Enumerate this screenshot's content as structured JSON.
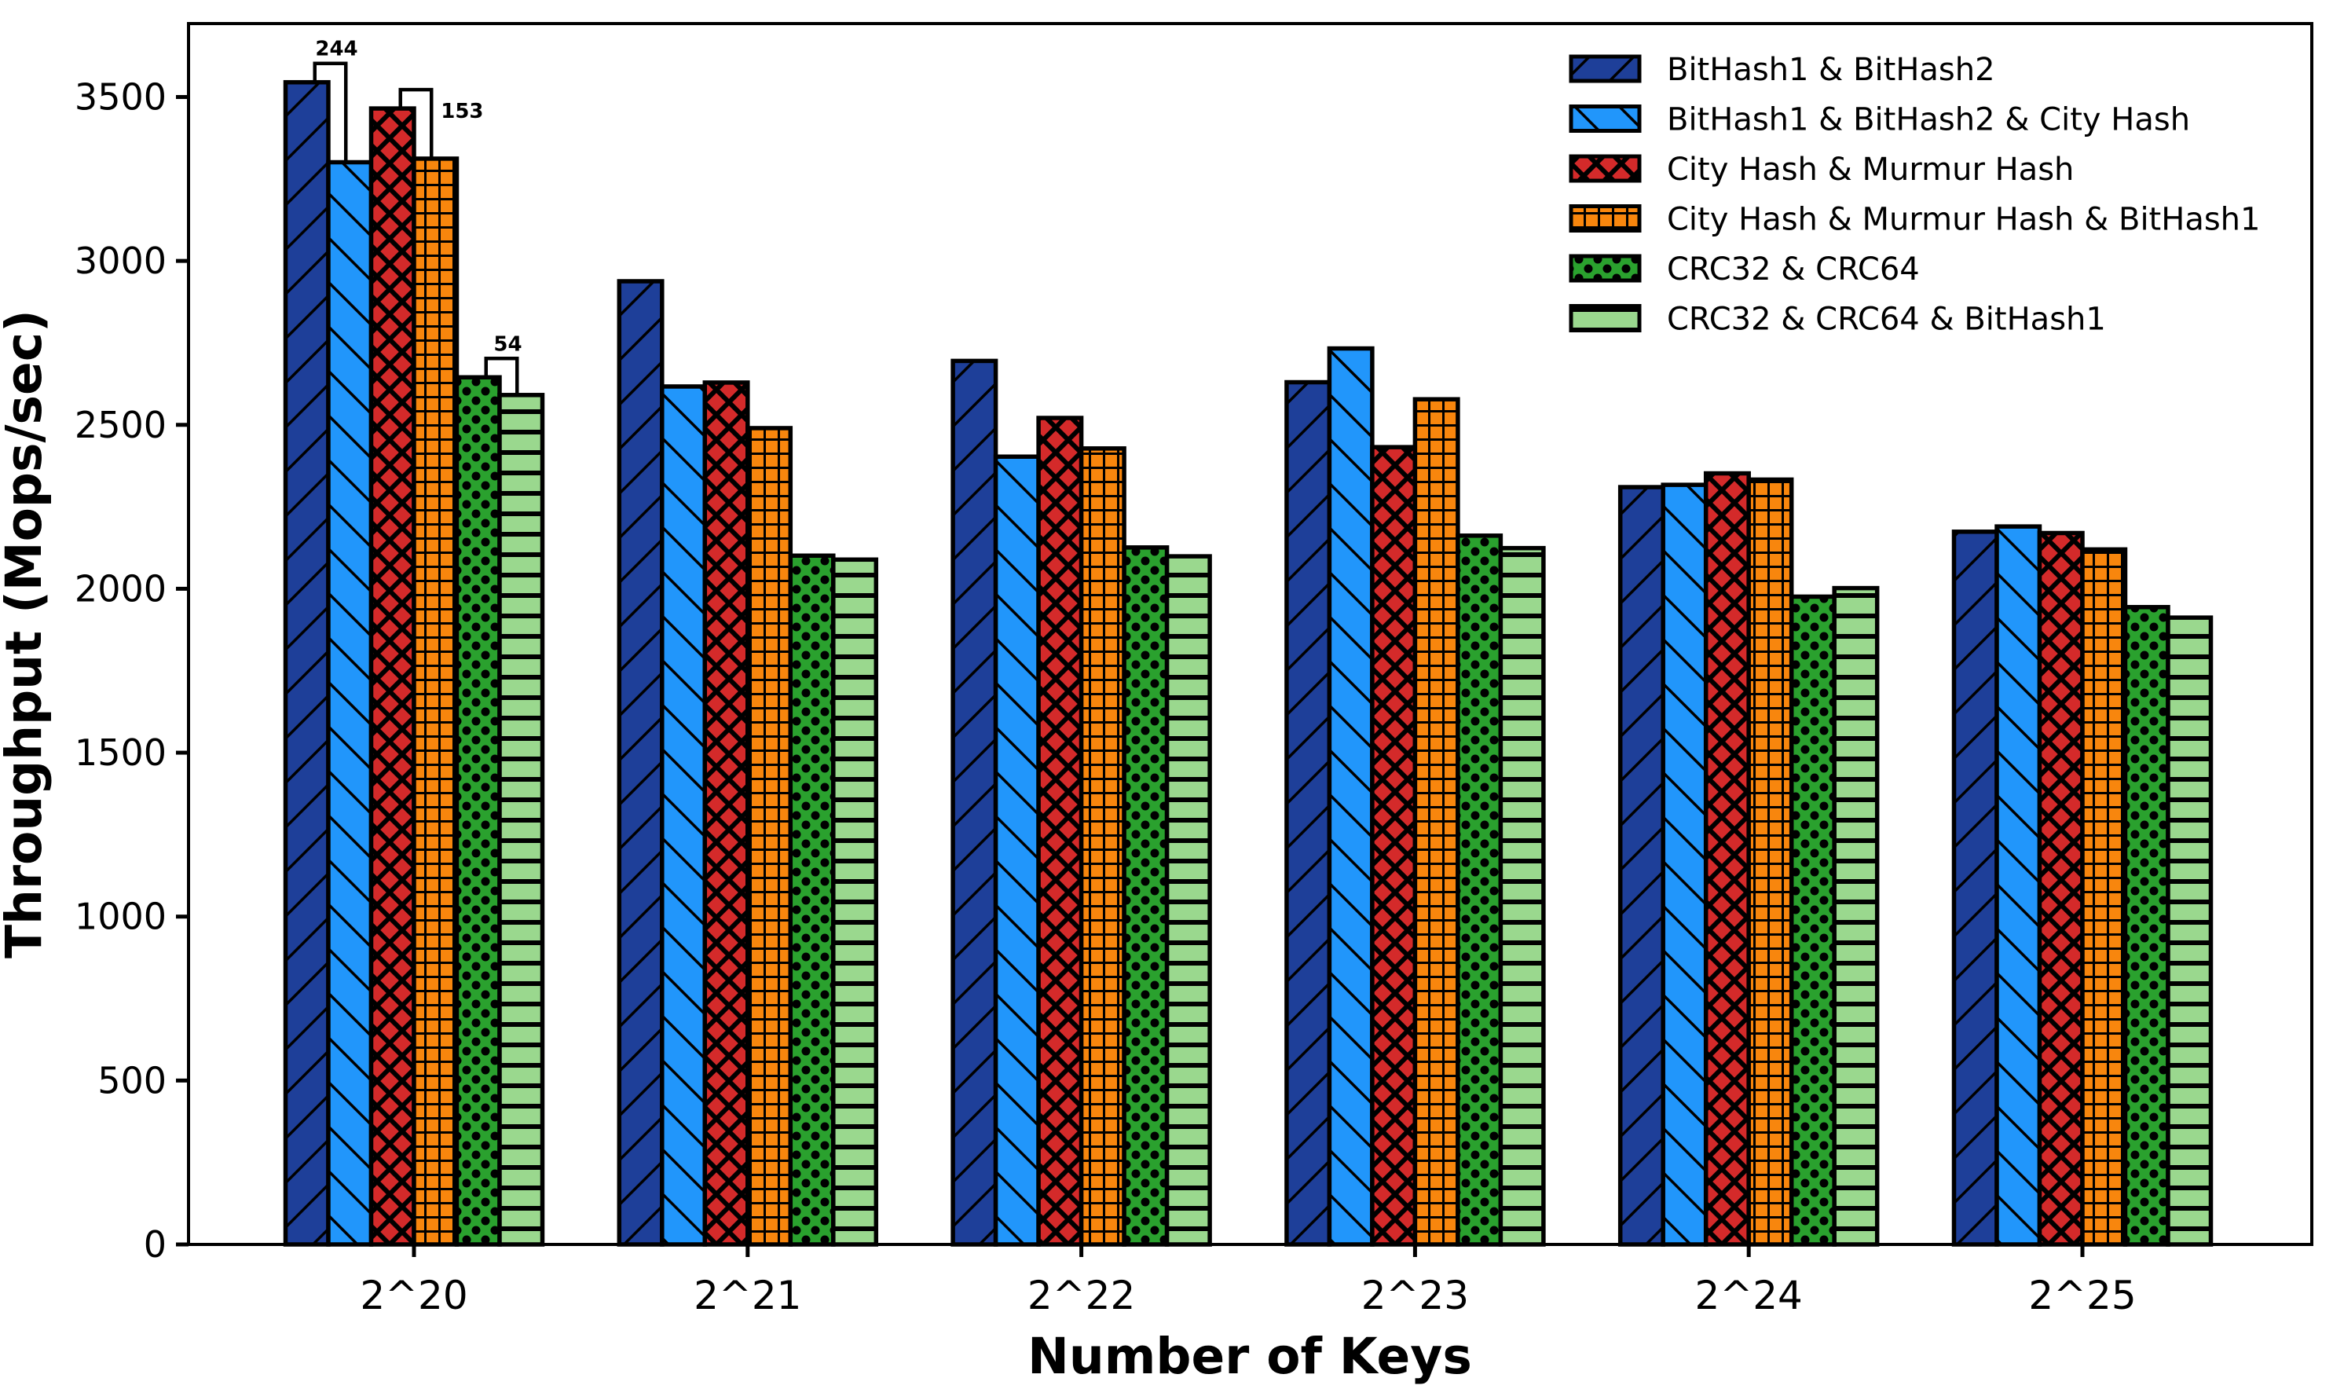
{
  "chart_data": {
    "type": "bar",
    "title": "",
    "xlabel": "Number of Keys",
    "ylabel": "Throughput (Mops/sec)",
    "categories": [
      "2^20",
      "2^21",
      "2^22",
      "2^23",
      "2^24",
      "2^25"
    ],
    "y_ticks": [
      0,
      500,
      1000,
      1500,
      2000,
      2500,
      3000,
      3500
    ],
    "ylim": [
      0,
      3724
    ],
    "grid": false,
    "legend_position": "upper right",
    "background_color": "#ffffff",
    "edge_color": "#000000",
    "series": [
      {
        "name": "BitHash1 & BitHash2",
        "color": "#1e3f99",
        "hatch": "diag-up",
        "values": [
          3545,
          2938,
          2695,
          2630,
          2310,
          2174
        ]
      },
      {
        "name": "BitHash1 & BitHash2 & City Hash",
        "color": "#2196fb",
        "hatch": "diag-down",
        "values": [
          3301,
          2617,
          2403,
          2733,
          2317,
          2190
        ]
      },
      {
        "name": "City Hash & Murmur Hash",
        "color": "#d42a2a",
        "hatch": "cross-diag",
        "values": [
          3465,
          2629,
          2521,
          2432,
          2352,
          2170
        ]
      },
      {
        "name": "City Hash & Murmur Hash & BitHash1",
        "color": "#f8860d",
        "hatch": "grid",
        "values": [
          3312,
          2490,
          2428,
          2578,
          2333,
          2120
        ]
      },
      {
        "name": "CRC32 & CRC64",
        "color": "#2aa12e",
        "hatch": "dots",
        "values": [
          2645,
          2101,
          2126,
          2162,
          1976,
          1944
        ]
      },
      {
        "name": "CRC32 & CRC64 & BitHash1",
        "color": "#9ad88e",
        "hatch": "horizontal",
        "values": [
          2591,
          2089,
          2099,
          2124,
          2002,
          1912
        ]
      }
    ],
    "annotations": [
      {
        "label": "244",
        "value": 244,
        "group": "2^20",
        "between": [
          0,
          1
        ],
        "color": "#f62d2d",
        "label_pos": "above-center"
      },
      {
        "label": "153",
        "value": 153,
        "group": "2^20",
        "between": [
          2,
          3
        ],
        "color": "#f62d2d",
        "label_pos": "right"
      },
      {
        "label": "54",
        "value": 54,
        "group": "2^20",
        "between": [
          4,
          5
        ],
        "color": "#f62d2d",
        "label_pos": "above-center"
      }
    ]
  }
}
